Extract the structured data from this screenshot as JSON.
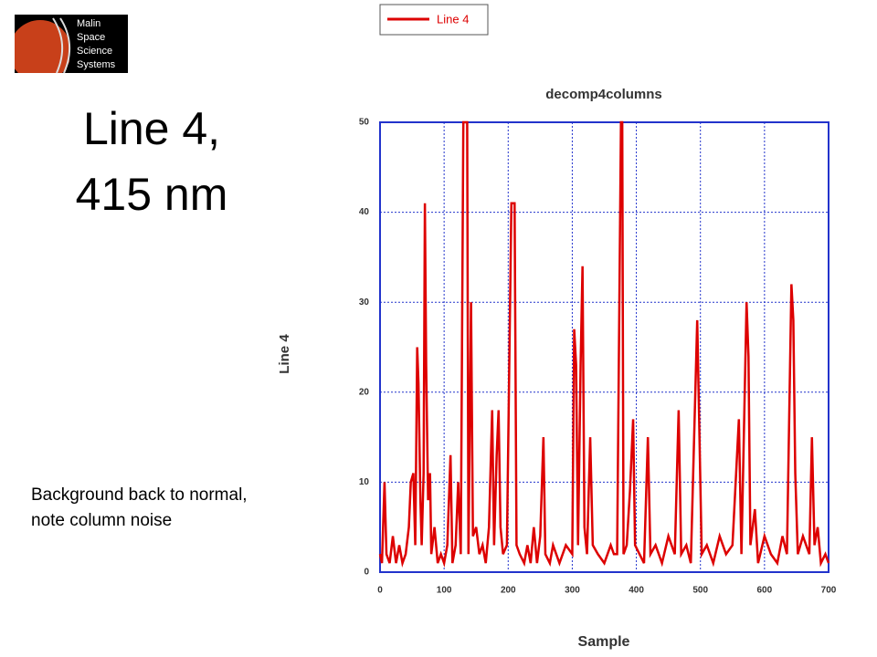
{
  "logo": {
    "lines": [
      "Malin",
      "Space",
      "Science",
      "Systems"
    ]
  },
  "slide": {
    "title_lines": [
      "Line 4,",
      "415 nm"
    ],
    "note_lines": [
      "Background back to normal,",
      "note column noise"
    ]
  },
  "chart_data": {
    "type": "line",
    "title": "decomp4columns",
    "xlabel": "Sample",
    "ylabel": "Line 4",
    "x": [
      0,
      3,
      7,
      10,
      15,
      20,
      25,
      30,
      35,
      40,
      45,
      48,
      52,
      55,
      58,
      60,
      63,
      65,
      68,
      70,
      72,
      75,
      78,
      80,
      85,
      90,
      95,
      100,
      105,
      110,
      113,
      118,
      122,
      126,
      130,
      133,
      136,
      138,
      142,
      145,
      150,
      155,
      160,
      165,
      170,
      175,
      178,
      182,
      185,
      188,
      192,
      198,
      205,
      208,
      210,
      213,
      218,
      225,
      230,
      235,
      240,
      245,
      250,
      255,
      258,
      265,
      270,
      280,
      290,
      300,
      303,
      306,
      309,
      313,
      316,
      319,
      323,
      328,
      332,
      340,
      350,
      360,
      365,
      370,
      376,
      378,
      380,
      385,
      390,
      395,
      398,
      405,
      412,
      418,
      422,
      430,
      440,
      450,
      460,
      466,
      470,
      478,
      485,
      495,
      498,
      502,
      510,
      520,
      530,
      540,
      550,
      560,
      564,
      572,
      575,
      578,
      585,
      590,
      600,
      610,
      620,
      628,
      635,
      642,
      645,
      648,
      652,
      660,
      670,
      674,
      678,
      683,
      688,
      695,
      700
    ],
    "series": [
      {
        "name": "Line 4",
        "color": "#dd0000",
        "values": [
          2,
          1,
          10,
          2,
          1,
          4,
          1,
          3,
          1,
          2,
          5,
          10,
          11,
          3,
          25,
          21,
          8,
          3,
          11,
          41,
          23,
          8,
          11,
          2,
          5,
          1,
          2,
          1,
          3,
          13,
          1,
          3,
          10,
          2,
          50,
          50,
          50,
          2,
          30,
          4,
          5,
          2,
          3,
          1,
          5,
          18,
          3,
          13,
          18,
          5,
          2,
          3,
          41,
          41,
          41,
          3,
          2,
          1,
          3,
          1,
          5,
          1,
          4,
          15,
          2,
          1,
          3,
          1,
          3,
          2,
          27,
          23,
          3,
          23,
          34,
          5,
          2,
          15,
          3,
          2,
          1,
          3,
          2,
          2,
          50,
          50,
          2,
          3,
          9,
          17,
          3,
          2,
          1,
          15,
          2,
          3,
          1,
          4,
          2,
          18,
          2,
          3,
          1,
          28,
          17,
          2,
          3,
          1,
          4,
          2,
          3,
          17,
          2,
          30,
          24,
          3,
          7,
          1,
          4,
          2,
          1,
          4,
          2,
          32,
          28,
          11,
          2,
          4,
          2,
          15,
          3,
          5,
          1,
          2,
          1
        ]
      }
    ],
    "xlim": [
      0,
      700
    ],
    "xticks": [
      0,
      100,
      200,
      300,
      400,
      500,
      600,
      700
    ],
    "ylim": [
      0,
      50
    ],
    "yticks": [
      0,
      10,
      20,
      30,
      40,
      50
    ],
    "grid": true,
    "legend": "top"
  }
}
